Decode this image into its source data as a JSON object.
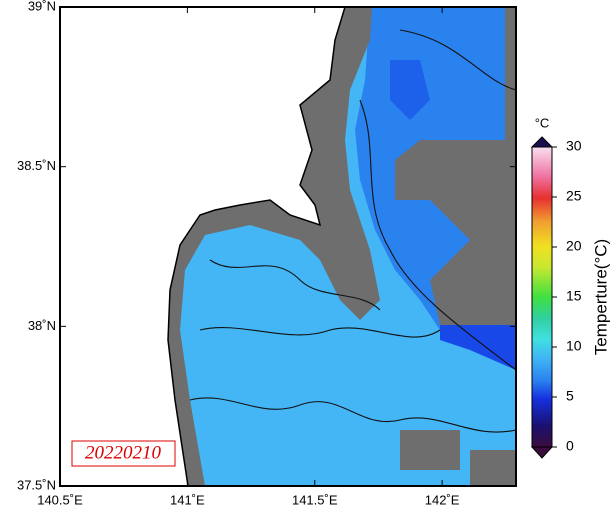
{
  "map": {
    "date_label": "20220210",
    "lonlim": [
      140.5,
      142.29
    ],
    "latlim": [
      37.5,
      39
    ],
    "lon_ticks": [
      {
        "value": 140.5,
        "label": "140.5˚E"
      },
      {
        "value": 141,
        "label": "141˚E"
      },
      {
        "value": 141.5,
        "label": "141.5˚E"
      },
      {
        "value": 142,
        "label": "142˚E"
      }
    ],
    "lat_ticks": [
      {
        "value": 37.5,
        "label": "37.5˚N"
      },
      {
        "value": 38,
        "label": "38˚N"
      },
      {
        "value": 38.5,
        "label": "38.5˚N"
      },
      {
        "value": 39,
        "label": "39˚N"
      }
    ],
    "colorbar": {
      "unit": "°C",
      "title": "Temperture(°C)",
      "lim": [
        0,
        30
      ],
      "ticks": [
        0,
        5,
        10,
        15,
        20,
        25,
        30
      ]
    }
  }
}
